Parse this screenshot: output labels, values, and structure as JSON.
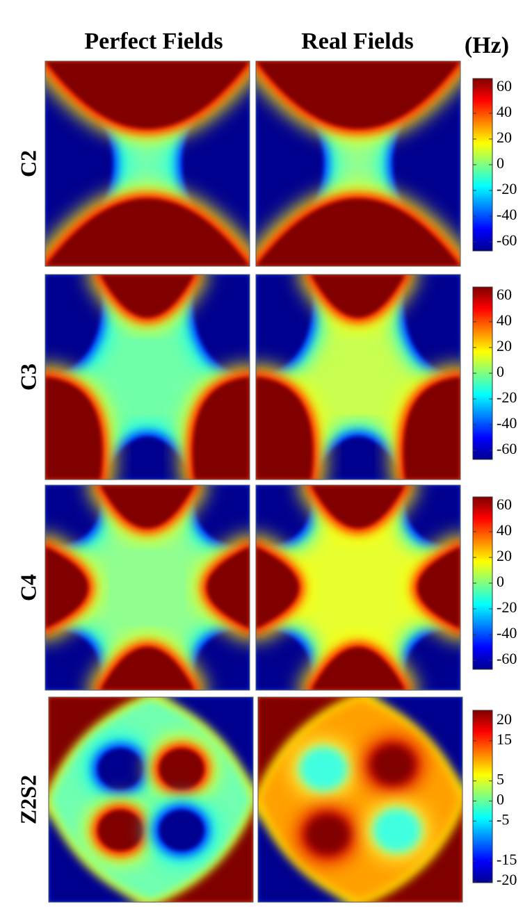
{
  "figure": {
    "column_titles": [
      "Perfect Fields",
      "Real Fields"
    ],
    "unit": "(Hz)"
  },
  "chart_data": [
    {
      "type": "heatmap",
      "row_label": "C2",
      "colormap": "jet",
      "ylim": [
        -67,
        67
      ],
      "yticks": [
        -60,
        -40,
        -20,
        0,
        20,
        40,
        60
      ]
    },
    {
      "type": "heatmap",
      "row_label": "C3",
      "colormap": "jet",
      "ylim": [
        -67,
        67
      ],
      "yticks": [
        -60,
        -40,
        -20,
        0,
        20,
        40,
        60
      ]
    },
    {
      "type": "heatmap",
      "row_label": "C4",
      "colormap": "jet",
      "ylim": [
        -67,
        67
      ],
      "yticks": [
        -60,
        -40,
        -20,
        0,
        20,
        40,
        60
      ]
    },
    {
      "type": "heatmap",
      "row_label": "Z2S2",
      "colormap": "jet",
      "ylim": [
        -20.35,
        22.6
      ],
      "yticks": [
        -20,
        -15,
        -5,
        0,
        5,
        15,
        20
      ]
    }
  ]
}
